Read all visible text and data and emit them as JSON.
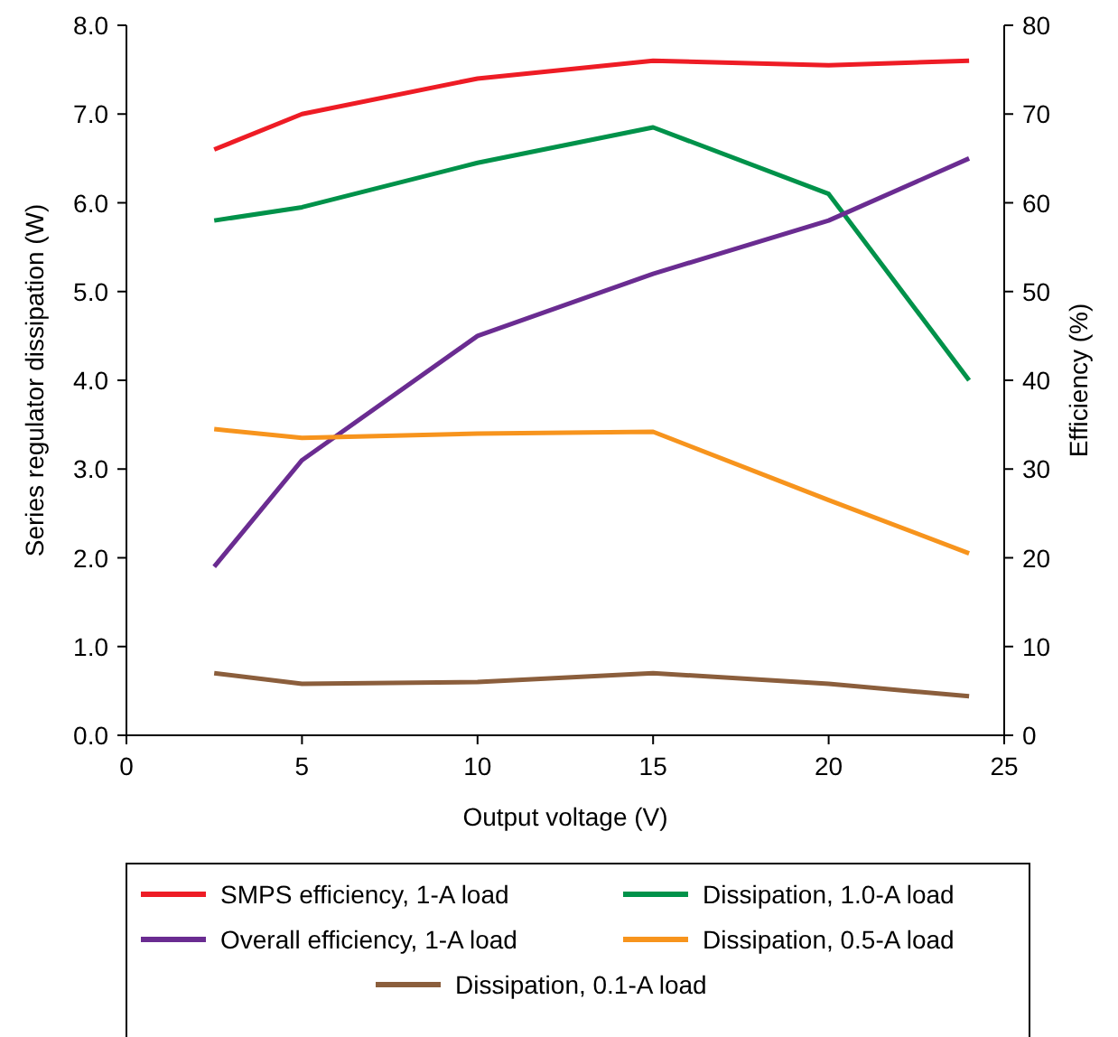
{
  "chart_data": {
    "type": "line",
    "xlabel": "Output voltage (V)",
    "ylabel": "Series regulator dissipation (W)",
    "y2label": "Efficiency (%)",
    "xlim": [
      0,
      25
    ],
    "xticks": [
      0,
      5,
      10,
      15,
      20,
      25
    ],
    "ylim": [
      0,
      8
    ],
    "yticks": [
      {
        "value": 0,
        "label": "0.0"
      },
      {
        "value": 1,
        "label": "1.0"
      },
      {
        "value": 2,
        "label": "2.0"
      },
      {
        "value": 3,
        "label": "3.0"
      },
      {
        "value": 4,
        "label": "4.0"
      },
      {
        "value": 5,
        "label": "5.0"
      },
      {
        "value": 6,
        "label": "6.0"
      },
      {
        "value": 7,
        "label": "7.0"
      },
      {
        "value": 8,
        "label": "8.0"
      }
    ],
    "y2lim": [
      0,
      80
    ],
    "y2ticks": [
      0,
      10,
      20,
      30,
      40,
      50,
      60,
      70,
      80
    ],
    "x": [
      2.5,
      5,
      10,
      15,
      20,
      24
    ],
    "series": [
      {
        "name": "SMPS efficiency, 1-A load",
        "color": "#ee1c25",
        "axis": "y2",
        "values": [
          66,
          70,
          74,
          76,
          75.5,
          76
        ]
      },
      {
        "name": "Dissipation, 1.0-A load",
        "color": "#00924a",
        "values": [
          5.8,
          5.95,
          6.45,
          6.85,
          6.1,
          4.0
        ]
      },
      {
        "name": "Overall efficiency, 1-A load",
        "color": "#6a2c91",
        "axis": "y2",
        "values": [
          19,
          31,
          45,
          52,
          58,
          65
        ]
      },
      {
        "name": "Dissipation, 0.5-A load",
        "color": "#f7941d",
        "values": [
          3.45,
          3.35,
          3.4,
          3.42,
          2.65,
          2.05
        ]
      },
      {
        "name": "Dissipation, 0.1-A load",
        "color": "#8b5e3c",
        "values": [
          0.7,
          0.58,
          0.6,
          0.7,
          0.58,
          0.44
        ]
      }
    ],
    "grid": false,
    "legend": "bottom",
    "marker": "none",
    "line_style": "solid"
  }
}
